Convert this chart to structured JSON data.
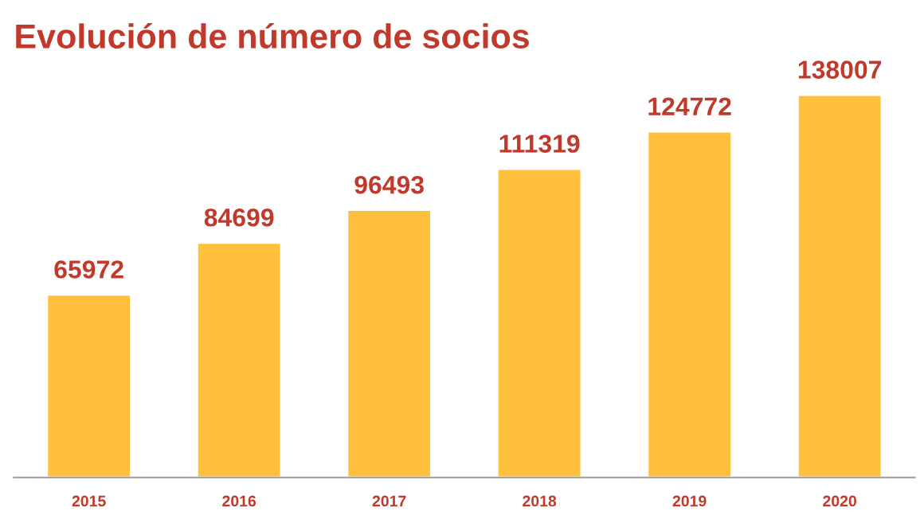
{
  "chart_data": {
    "type": "bar",
    "title": "Evolución de número de socios",
    "categories": [
      "2015",
      "2016",
      "2017",
      "2018",
      "2019",
      "2020"
    ],
    "values": [
      65972,
      84699,
      96493,
      111319,
      124772,
      138007
    ],
    "color": "#ffc13d",
    "data_labels": true,
    "grid": false,
    "legend": false
  }
}
